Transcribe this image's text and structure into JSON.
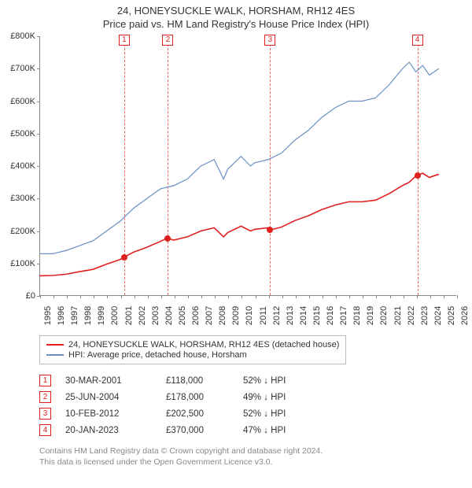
{
  "title_line1": "24, HONEYSUCKLE WALK, HORSHAM, RH12 4ES",
  "title_line2": "Price paid vs. HM Land Registry's House Price Index (HPI)",
  "chart": {
    "type": "line",
    "x_min": 1995,
    "x_max": 2026,
    "y_min": 0,
    "y_max": 800000,
    "y_ticks": [
      0,
      100000,
      200000,
      300000,
      400000,
      500000,
      600000,
      700000,
      800000
    ],
    "y_tick_labels": [
      "£0",
      "£100K",
      "£200K",
      "£300K",
      "£400K",
      "£500K",
      "£600K",
      "£700K",
      "£800K"
    ],
    "x_ticks": [
      1995,
      1996,
      1997,
      1998,
      1999,
      2000,
      2001,
      2002,
      2003,
      2004,
      2005,
      2006,
      2007,
      2008,
      2009,
      2010,
      2011,
      2012,
      2013,
      2014,
      2015,
      2016,
      2017,
      2018,
      2019,
      2020,
      2021,
      2022,
      2023,
      2024,
      2025,
      2026
    ],
    "background_color": "#ffffff",
    "axis_color": "#888888",
    "series": [
      {
        "name": "hpi",
        "color": "#6a8fc4",
        "width": 1.2,
        "points": [
          [
            1995,
            130000
          ],
          [
            1996,
            130000
          ],
          [
            1997,
            140000
          ],
          [
            1998,
            155000
          ],
          [
            1999,
            170000
          ],
          [
            2000,
            200000
          ],
          [
            2001,
            230000
          ],
          [
            2002,
            270000
          ],
          [
            2003,
            300000
          ],
          [
            2004,
            330000
          ],
          [
            2005,
            340000
          ],
          [
            2006,
            360000
          ],
          [
            2007,
            400000
          ],
          [
            2008,
            420000
          ],
          [
            2008.7,
            360000
          ],
          [
            2009,
            390000
          ],
          [
            2010,
            430000
          ],
          [
            2010.7,
            400000
          ],
          [
            2011,
            410000
          ],
          [
            2012,
            420000
          ],
          [
            2013,
            440000
          ],
          [
            2014,
            480000
          ],
          [
            2015,
            510000
          ],
          [
            2016,
            550000
          ],
          [
            2017,
            580000
          ],
          [
            2018,
            600000
          ],
          [
            2019,
            600000
          ],
          [
            2020,
            610000
          ],
          [
            2021,
            650000
          ],
          [
            2022,
            700000
          ],
          [
            2022.5,
            720000
          ],
          [
            2023,
            690000
          ],
          [
            2023.5,
            710000
          ],
          [
            2024,
            680000
          ],
          [
            2024.7,
            700000
          ]
        ]
      },
      {
        "name": "property",
        "color": "#e02020",
        "width": 1.6,
        "points": [
          [
            1995,
            62000
          ],
          [
            1996,
            63000
          ],
          [
            1997,
            67000
          ],
          [
            1998,
            75000
          ],
          [
            1999,
            82000
          ],
          [
            2000,
            98000
          ],
          [
            2001,
            112000
          ],
          [
            2001.25,
            118000
          ],
          [
            2002,
            135000
          ],
          [
            2003,
            150000
          ],
          [
            2004,
            168000
          ],
          [
            2004.5,
            178000
          ],
          [
            2005,
            172000
          ],
          [
            2006,
            182000
          ],
          [
            2007,
            200000
          ],
          [
            2008,
            210000
          ],
          [
            2008.7,
            182000
          ],
          [
            2009,
            195000
          ],
          [
            2010,
            215000
          ],
          [
            2010.7,
            200000
          ],
          [
            2011,
            205000
          ],
          [
            2012,
            210000
          ],
          [
            2012.1,
            202500
          ],
          [
            2013,
            212000
          ],
          [
            2014,
            232000
          ],
          [
            2015,
            247000
          ],
          [
            2016,
            266000
          ],
          [
            2017,
            280000
          ],
          [
            2018,
            290000
          ],
          [
            2019,
            290000
          ],
          [
            2020,
            295000
          ],
          [
            2021,
            315000
          ],
          [
            2022,
            340000
          ],
          [
            2022.5,
            350000
          ],
          [
            2023,
            370000
          ],
          [
            2023.05,
            370000
          ],
          [
            2023.5,
            378000
          ],
          [
            2024,
            365000
          ],
          [
            2024.7,
            375000
          ]
        ]
      }
    ],
    "event_markers": [
      {
        "n": "1",
        "x": 2001.25,
        "y": 118000
      },
      {
        "n": "2",
        "x": 2004.5,
        "y": 178000
      },
      {
        "n": "3",
        "x": 2012.1,
        "y": 202500
      },
      {
        "n": "4",
        "x": 2023.05,
        "y": 370000
      }
    ]
  },
  "legend": {
    "items": [
      {
        "color": "#e02020",
        "label": "24, HONEYSUCKLE WALK, HORSHAM, RH12 4ES (detached house)"
      },
      {
        "color": "#6a8fc4",
        "label": "HPI: Average price, detached house, Horsham"
      }
    ]
  },
  "sales": [
    {
      "n": "1",
      "date": "30-MAR-2001",
      "price": "£118,000",
      "diff": "52% ↓ HPI"
    },
    {
      "n": "2",
      "date": "25-JUN-2004",
      "price": "£178,000",
      "diff": "49% ↓ HPI"
    },
    {
      "n": "3",
      "date": "10-FEB-2012",
      "price": "£202,500",
      "diff": "52% ↓ HPI"
    },
    {
      "n": "4",
      "date": "20-JAN-2023",
      "price": "£370,000",
      "diff": "47% ↓ HPI"
    }
  ],
  "footer_line1": "Contains HM Land Registry data © Crown copyright and database right 2024.",
  "footer_line2": "This data is licensed under the Open Government Licence v3.0."
}
